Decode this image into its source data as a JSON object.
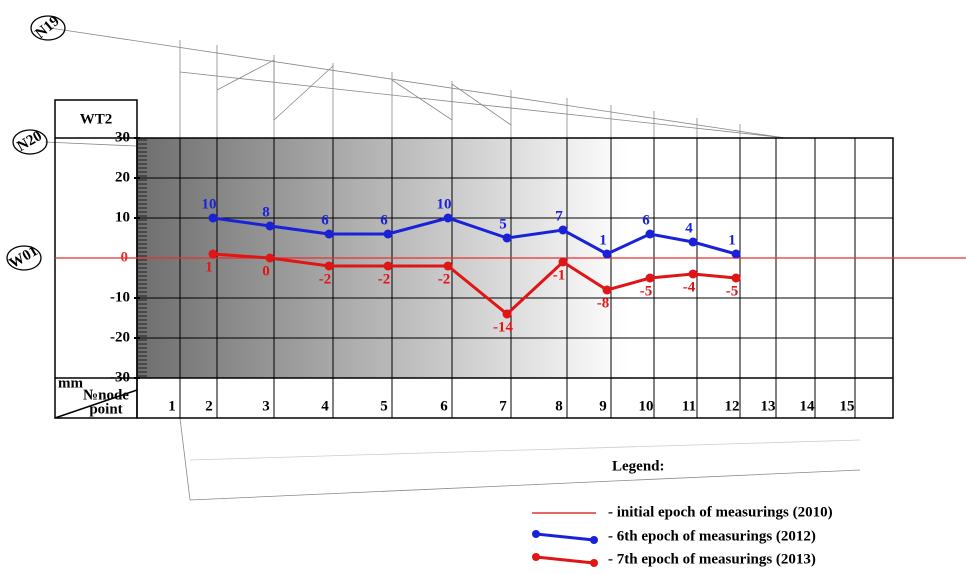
{
  "chart_data": {
    "type": "line",
    "title": "WT2",
    "axis_unit": "mm",
    "category_header": [
      "№node",
      "point"
    ],
    "categories": [
      "1",
      "2",
      "3",
      "4",
      "5",
      "6",
      "7",
      "8",
      "9",
      "10",
      "11",
      "12",
      "13",
      "14",
      "15"
    ],
    "baseline": 0,
    "baseline_name": "- initial epoch of measurings (2010)",
    "baseline_color": "#e53030",
    "series": [
      {
        "name": "- 6th epoch of measurings (2012)",
        "color": "#1a22d8",
        "values": [
          null,
          10,
          8,
          6,
          6,
          10,
          5,
          7,
          1,
          6,
          4,
          1,
          null,
          null,
          null
        ]
      },
      {
        "name": "- 7th epoch of measurings (2013)",
        "color": "#e01515",
        "values": [
          null,
          1,
          0,
          -2,
          -2,
          -2,
          -14,
          -1,
          -8,
          -5,
          -4,
          -5,
          null,
          null,
          null
        ]
      }
    ],
    "ylim": [
      -30,
      30
    ],
    "yticks": [
      30,
      20,
      10,
      0,
      -10,
      -20,
      -30
    ],
    "grid": true,
    "legend_title": "Legend:",
    "markers": [
      "N19",
      "N20",
      "W01"
    ]
  }
}
